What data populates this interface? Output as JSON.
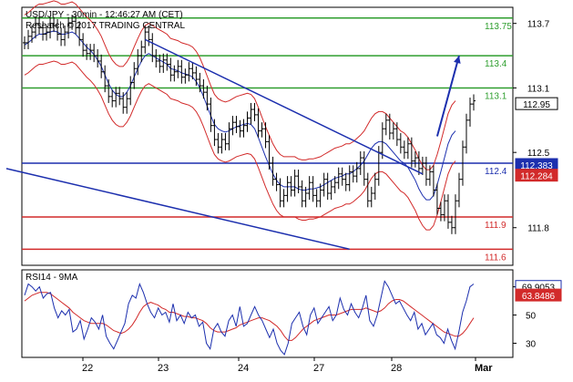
{
  "chart_data": [
    {
      "type": "line",
      "header": {
        "line1": "USD/JPY - 30min - 12:46:27 AM (CET)",
        "line2": "Research © 2017 TRADING CENTRAL"
      },
      "x_tick_labels": [
        "22",
        "23",
        "24",
        "27",
        "28",
        "Mar"
      ],
      "y_tick_labels": [
        "113.7",
        "113.1",
        "112.5",
        "111.8"
      ],
      "y_ticks": [
        113.7,
        113.1,
        112.5,
        111.8
      ],
      "ylim": [
        111.45,
        113.85
      ],
      "levels": [
        {
          "value": 113.75,
          "label": "113.75",
          "color": "#2e9e2e"
        },
        {
          "value": 113.4,
          "label": "113.4",
          "color": "#2e9e2e"
        },
        {
          "value": 113.1,
          "label": "113.1",
          "color": "#2e9e2e"
        },
        {
          "value": 112.4,
          "label": "112.4",
          "color": "#1c2fae"
        },
        {
          "value": 111.9,
          "label": "111.9",
          "color": "#d22a2a"
        },
        {
          "value": 111.6,
          "label": "111.6",
          "color": "#d22a2a"
        }
      ],
      "price_tags": [
        {
          "value": 112.95,
          "label": "112.95",
          "bg": "#ffffff",
          "fg": "#000000",
          "border": "#000000"
        },
        {
          "value": 112.383,
          "label": "112.383",
          "bg": "#1c2fae",
          "fg": "#ffffff",
          "border": "#1c2fae"
        },
        {
          "value": 112.284,
          "label": "112.284",
          "bg": "#d22a2a",
          "fg": "#ffffff",
          "border": "#d22a2a"
        }
      ],
      "price_series": [
        113.52,
        113.58,
        113.62,
        113.7,
        113.66,
        113.6,
        113.62,
        113.7,
        113.68,
        113.6,
        113.55,
        113.62,
        113.7,
        113.72,
        113.66,
        113.55,
        113.45,
        113.42,
        113.45,
        113.4,
        113.35,
        113.25,
        113.12,
        113.02,
        112.98,
        113.05,
        113.0,
        112.92,
        113.0,
        113.15,
        113.28,
        113.4,
        113.48,
        113.62,
        113.55,
        113.4,
        113.35,
        113.3,
        113.36,
        113.32,
        113.22,
        113.25,
        113.3,
        113.2,
        113.22,
        113.28,
        113.24,
        113.18,
        113.12,
        113.06,
        112.95,
        112.75,
        112.62,
        112.55,
        112.62,
        112.58,
        112.72,
        112.78,
        112.74,
        112.7,
        112.75,
        112.82,
        112.9,
        112.85,
        112.7,
        112.72,
        112.6,
        112.4,
        112.25,
        112.2,
        112.05,
        112.1,
        112.22,
        112.15,
        112.28,
        112.18,
        112.05,
        112.12,
        112.22,
        112.1,
        112.05,
        112.15,
        112.25,
        112.12,
        112.18,
        112.22,
        112.3,
        112.25,
        112.2,
        112.32,
        112.28,
        112.35,
        112.45,
        112.25,
        112.05,
        112.12,
        112.25,
        112.5,
        112.72,
        112.8,
        112.68,
        112.72,
        112.62,
        112.55,
        112.5,
        112.58,
        112.42,
        112.45,
        112.35,
        112.4,
        112.25,
        112.32,
        112.15,
        111.98,
        111.92,
        112.05,
        111.85,
        111.8,
        112.05,
        112.25,
        112.55,
        112.8,
        112.95,
        112.98
      ],
      "ma_series": [
        113.5,
        113.52,
        113.55,
        113.58,
        113.6,
        113.6,
        113.61,
        113.62,
        113.63,
        113.62,
        113.6,
        113.6,
        113.61,
        113.62,
        113.6,
        113.56,
        113.52,
        113.48,
        113.45,
        113.41,
        113.36,
        113.3,
        113.22,
        113.14,
        113.08,
        113.04,
        113.02,
        113.02,
        113.06,
        113.12,
        113.2,
        113.28,
        113.35,
        113.4,
        113.42,
        113.4,
        113.38,
        113.36,
        113.34,
        113.32,
        113.28,
        113.27,
        113.26,
        113.24,
        113.23,
        113.22,
        113.2,
        113.16,
        113.1,
        113.02,
        112.93,
        112.84,
        112.76,
        112.72,
        112.7,
        112.69,
        112.7,
        112.72,
        112.74,
        112.75,
        112.76,
        112.77,
        112.76,
        112.72,
        112.64,
        112.55,
        112.46,
        112.38,
        112.3,
        112.24,
        112.2,
        112.18,
        112.18,
        112.18,
        112.18,
        112.16,
        112.15,
        112.15,
        112.16,
        112.16,
        112.17,
        112.18,
        112.2,
        112.22,
        112.24,
        112.26,
        112.27,
        112.28,
        112.3,
        112.3,
        112.32,
        112.35,
        112.38,
        112.42,
        112.48,
        112.54,
        112.58,
        112.6,
        112.6,
        112.58,
        112.54,
        112.5,
        112.46,
        112.42,
        112.4,
        112.36,
        112.3,
        112.24,
        112.16,
        112.1,
        112.06,
        112.06,
        112.1,
        112.2,
        112.32,
        112.45,
        112.58,
        112.66,
        112.7
      ],
      "channel_lines": [
        {
          "from": [
            -5,
            112.35
          ],
          "to": [
            89,
            111.6
          ]
        },
        {
          "from": [
            33,
            113.55
          ],
          "to": [
            109,
            112.3
          ]
        }
      ],
      "target_arrow": {
        "from": [
          113,
          112.65
        ],
        "to": [
          119,
          113.4
        ]
      },
      "rsi_panel": {
        "title": "RSI14 - 9MA",
        "y_tick_labels": [
          "70",
          "50",
          "30"
        ],
        "y_ticks": [
          70,
          50,
          30
        ],
        "ylim": [
          20,
          82
        ],
        "tags": [
          {
            "value": 69.9053,
            "label": "69.9053",
            "bg": "#ffffff",
            "fg": "#000000",
            "border": "#1c2fae"
          },
          {
            "value": 63.8486,
            "label": "63.8486",
            "bg": "#d22a2a",
            "fg": "#ffffff",
            "border": "#d22a2a"
          }
        ],
        "rsi_series": [
          64,
          72,
          70,
          67,
          70,
          62,
          65,
          66,
          55,
          48,
          53,
          50,
          54,
          38,
          40,
          46,
          33,
          40,
          48,
          45,
          40,
          50,
          35,
          30,
          26,
          32,
          38,
          44,
          58,
          64,
          62,
          72,
          66,
          58,
          52,
          48,
          55,
          50,
          52,
          45,
          58,
          46,
          50,
          44,
          52,
          48,
          50,
          42,
          45,
          30,
          26,
          40,
          44,
          38,
          35,
          46,
          50,
          42,
          56,
          42,
          44,
          50,
          56,
          50,
          46,
          40,
          34,
          40,
          30,
          25,
          22,
          30,
          44,
          48,
          52,
          42,
          36,
          50,
          55,
          44,
          48,
          52,
          56,
          46,
          50,
          62,
          54,
          50,
          58,
          52,
          48,
          55,
          64,
          46,
          42,
          50,
          62,
          74,
          70,
          64,
          58,
          60,
          55,
          50,
          46,
          52,
          40,
          44,
          36,
          40,
          44,
          36,
          34,
          30,
          40,
          32,
          26,
          38,
          52,
          60,
          70,
          72
        ],
        "ma_series": [
          60,
          62,
          64,
          65,
          66,
          66,
          66,
          65,
          63,
          61,
          59,
          57,
          55,
          52,
          50,
          48,
          46,
          45,
          44,
          44,
          44,
          44,
          43,
          41,
          39,
          38,
          37,
          38,
          40,
          43,
          47,
          52,
          56,
          58,
          59,
          58,
          57,
          55,
          54,
          52,
          52,
          51,
          50,
          49,
          49,
          48,
          48,
          47,
          46,
          44,
          41,
          39,
          38,
          38,
          38,
          39,
          40,
          41,
          43,
          44,
          45,
          46,
          47,
          48,
          48,
          47,
          46,
          44,
          42,
          39,
          35,
          32,
          32,
          34,
          37,
          40,
          42,
          44,
          46,
          47,
          48,
          49,
          50,
          50,
          50,
          51,
          52,
          53,
          54,
          54,
          54,
          54,
          55,
          54,
          53,
          52,
          53,
          55,
          58,
          60,
          61,
          61,
          60,
          58,
          56,
          54,
          52,
          50,
          48,
          46,
          44,
          42,
          40,
          38,
          37,
          36,
          35,
          35,
          37,
          40,
          44,
          48
        ]
      }
    }
  ]
}
